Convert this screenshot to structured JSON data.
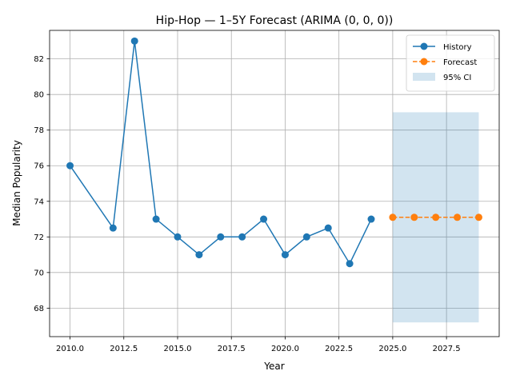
{
  "chart_data": {
    "type": "line",
    "title": "Hip-Hop — 1–5Y Forecast (ARIMA (0, 0, 0))",
    "xlabel": "Year",
    "ylabel": "Median Popularity",
    "xlim": [
      2009.05,
      2029.95
    ],
    "ylim": [
      66.4,
      83.6
    ],
    "xticks": [
      2010.0,
      2012.5,
      2015.0,
      2017.5,
      2020.0,
      2022.5,
      2025.0,
      2027.5
    ],
    "xtick_labels": [
      "2010.0",
      "2012.5",
      "2015.0",
      "2017.5",
      "2020.0",
      "2022.5",
      "2025.0",
      "2027.5"
    ],
    "yticks": [
      68,
      70,
      72,
      74,
      76,
      78,
      80,
      82
    ],
    "ytick_labels": [
      "68",
      "70",
      "72",
      "74",
      "76",
      "78",
      "80",
      "82"
    ],
    "grid": true,
    "legend_position": "top-right",
    "series": [
      {
        "name": "History",
        "color": "#1f77b4",
        "style": "solid",
        "x": [
          2010,
          2012,
          2013,
          2014,
          2015,
          2016,
          2017,
          2018,
          2019,
          2020,
          2021,
          2022,
          2023,
          2024
        ],
        "values": [
          76,
          72.5,
          83,
          73,
          72,
          71,
          72,
          72,
          73,
          71,
          72,
          72.5,
          70.5,
          73
        ]
      },
      {
        "name": "Forecast",
        "color": "#ff7f0e",
        "style": "dashed",
        "x": [
          2025,
          2026,
          2027,
          2028,
          2029
        ],
        "values": [
          73.1,
          73.1,
          73.1,
          73.1,
          73.1
        ]
      }
    ],
    "confidence_band": {
      "name": "95% CI",
      "color": "#1f77b4",
      "x": [
        2025,
        2029
      ],
      "lower": 67.2,
      "upper": 79.0
    }
  }
}
